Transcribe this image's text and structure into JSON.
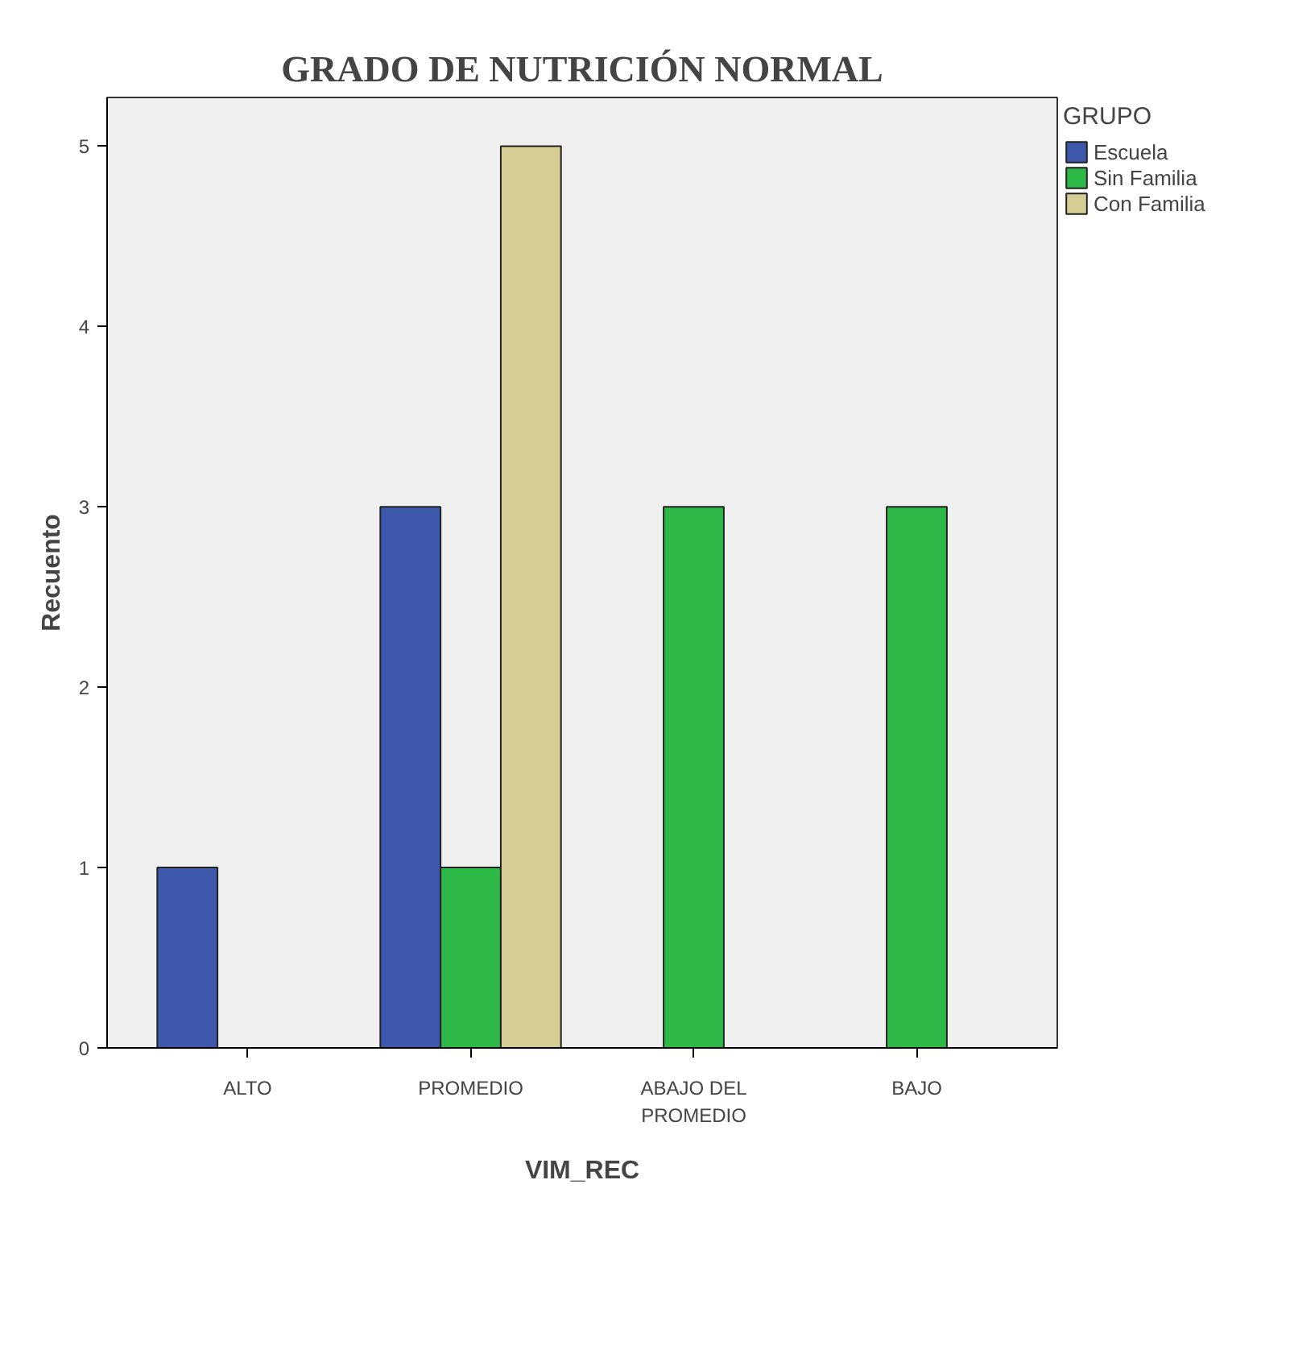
{
  "chart_data": {
    "type": "bar",
    "title": "GRADO DE NUTRICIÓN NORMAL",
    "xlabel": "VIM_REC",
    "ylabel": "Recuento",
    "legend_title": "GRUPO",
    "categories": [
      "ALTO",
      "PROMEDIO",
      "ABAJO DEL\nPROMEDIO",
      "BAJO"
    ],
    "series": [
      {
        "name": "Escuela",
        "color": "#3e58ac",
        "values": [
          1,
          3,
          null,
          null
        ]
      },
      {
        "name": "Sin Familia",
        "color": "#2eb848",
        "values": [
          null,
          1,
          3,
          3
        ]
      },
      {
        "name": "Con Familia",
        "color": "#d4ce95",
        "values": [
          null,
          5,
          null,
          null
        ]
      }
    ],
    "ylim": [
      0,
      5.27
    ],
    "yticks": [
      0,
      1,
      2,
      3,
      4,
      5
    ],
    "grid": false,
    "legend": "top right"
  }
}
